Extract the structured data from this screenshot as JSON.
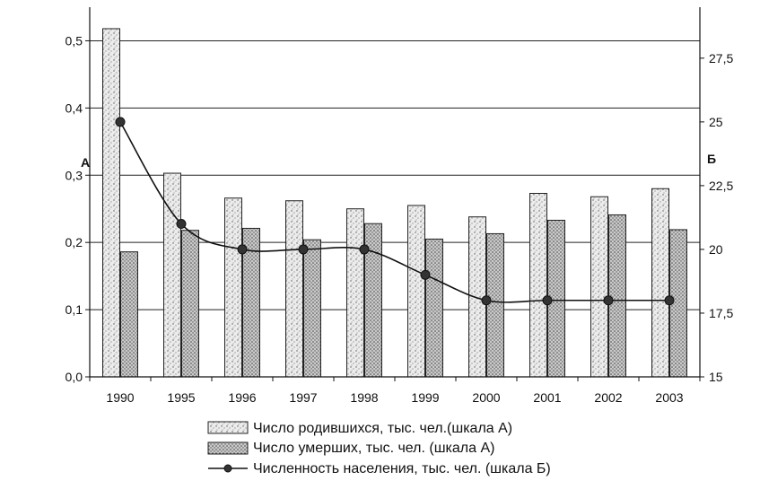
{
  "chart_data": {
    "type": "bar",
    "categories": [
      "1990",
      "1995",
      "1996",
      "1997",
      "1998",
      "1999",
      "2000",
      "2001",
      "2002",
      "2003"
    ],
    "series": [
      {
        "name": "Число родившихся, тыс. чел.(шкала А)",
        "kind": "bar",
        "axis": "left",
        "values": [
          0.518,
          0.303,
          0.266,
          0.262,
          0.25,
          0.255,
          0.238,
          0.273,
          0.268,
          0.28
        ]
      },
      {
        "name": "Число умерших, тыс. чел. (шкала А)",
        "kind": "bar",
        "axis": "left",
        "values": [
          0.186,
          0.218,
          0.221,
          0.204,
          0.228,
          0.205,
          0.213,
          0.233,
          0.241,
          0.219
        ]
      },
      {
        "name": "Численность населения, тыс. чел. (шкала Б)",
        "kind": "line",
        "axis": "right",
        "values": [
          25,
          21,
          20,
          20,
          20,
          19,
          18,
          18,
          18,
          18
        ]
      }
    ],
    "left_axis": {
      "label": "А",
      "range": [
        0,
        0.55
      ],
      "ticks": [
        "0,0",
        "0,1",
        "0,2",
        "0,3",
        "0,4",
        "0,5"
      ],
      "tick_values": [
        0,
        0.1,
        0.2,
        0.3,
        0.4,
        0.5
      ]
    },
    "right_axis": {
      "label": "Б",
      "range": [
        15,
        29.5
      ],
      "ticks": [
        "15",
        "17,5",
        "20",
        "22,5",
        "25",
        "27,5"
      ],
      "tick_values": [
        15,
        17.5,
        20,
        22.5,
        25,
        27.5
      ]
    },
    "grid": true,
    "legend": "bottom"
  },
  "colors": {
    "axis": "#111111",
    "grid": "#222222",
    "bar_fill": "#e6e6e6",
    "bar_stroke": "#222222",
    "line": "#111111",
    "marker": "#333333"
  }
}
